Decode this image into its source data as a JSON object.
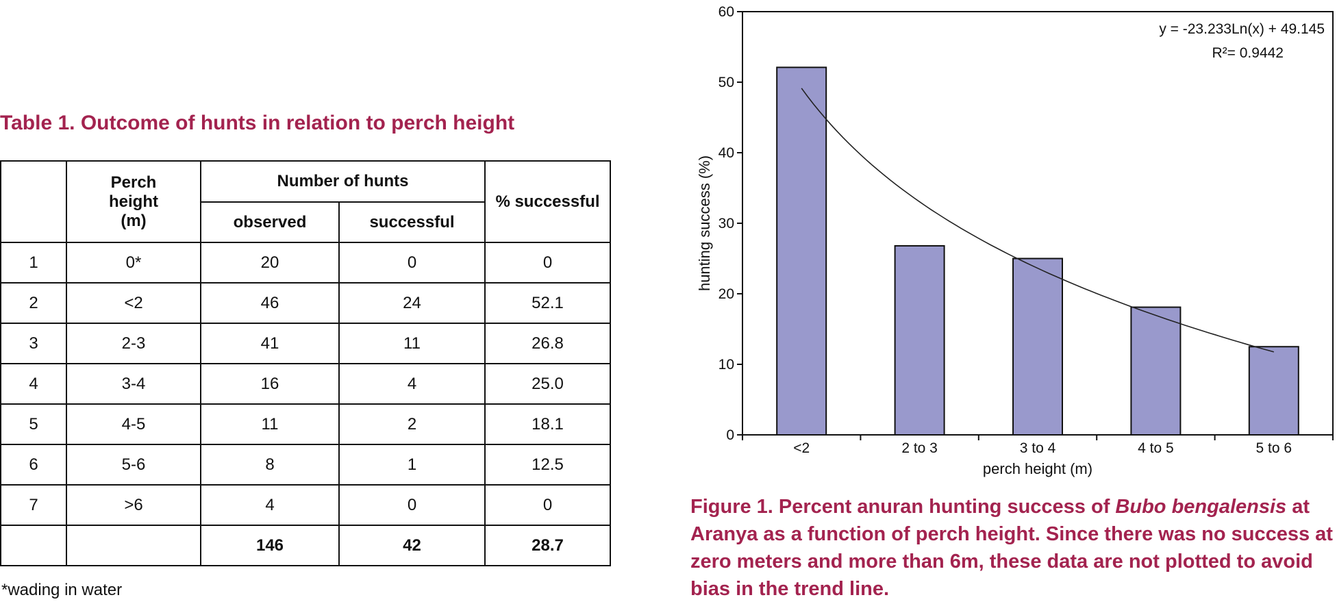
{
  "table": {
    "title": "Table 1. Outcome of hunts in relation to perch height",
    "headers": {
      "perch_height": "Perch height (m)",
      "number_of_hunts": "Number of hunts",
      "observed": "observed",
      "successful": "successful",
      "percent_successful": "% successful"
    },
    "rows": [
      {
        "id": "1",
        "perch": "0*",
        "observed": "20",
        "successful": "0",
        "percent": "0"
      },
      {
        "id": "2",
        "perch": "<2",
        "observed": "46",
        "successful": "24",
        "percent": "52.1"
      },
      {
        "id": "3",
        "perch": "2-3",
        "observed": "41",
        "successful": "11",
        "percent": "26.8"
      },
      {
        "id": "4",
        "perch": "3-4",
        "observed": "16",
        "successful": "4",
        "percent": "25.0"
      },
      {
        "id": "5",
        "perch": "4-5",
        "observed": "11",
        "successful": "2",
        "percent": "18.1"
      },
      {
        "id": "6",
        "perch": "5-6",
        "observed": "8",
        "successful": "1",
        "percent": "12.5"
      },
      {
        "id": "7",
        "perch": ">6",
        "observed": "4",
        "successful": "0",
        "percent": "0"
      }
    ],
    "total": {
      "observed": "146",
      "successful": "42",
      "percent": "28.7"
    },
    "footnote": "*wading in water"
  },
  "figure": {
    "caption_lead": "Figure 1. Percent anuran hunting success of ",
    "caption_species": "Bubo bengalensis",
    "caption_rest": " at Aranya as a function of perch height. Since there was no success at zero meters and more than 6m, these data are not plotted to avoid bias in the trend line."
  },
  "chart_data": {
    "type": "bar",
    "categories": [
      "<2",
      "2 to 3",
      "3 to 4",
      "4 to 5",
      "5 to 6"
    ],
    "values": [
      52.1,
      26.8,
      25.0,
      18.1,
      12.5
    ],
    "title": "",
    "xlabel": "perch height (m)",
    "ylabel": "hunting success (%)",
    "ylim": [
      0,
      60
    ],
    "yticks": [
      0,
      10,
      20,
      30,
      40,
      50,
      60
    ],
    "grid": false,
    "bar_color": "#9999cc",
    "trendline": {
      "type": "logarithmic",
      "a": -23.233,
      "b": 49.145,
      "equation": "y = -23.233Ln(x) + 49.145",
      "r_squared": "R²= 0.9442"
    }
  }
}
